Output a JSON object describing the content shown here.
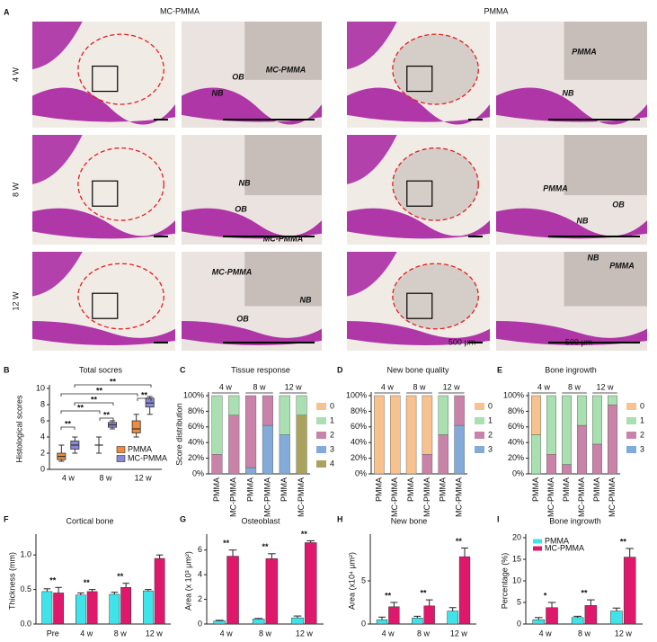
{
  "figure": {
    "panel_a": {
      "label": "A",
      "column_titles": [
        "MC-PMMA",
        "PMMA"
      ],
      "row_labels": [
        "4 W",
        "8 W",
        "12 W"
      ],
      "image_labels": [
        "OB",
        "MC-PMMA",
        "NB",
        "PMMA",
        "NB",
        "NB",
        "OB",
        "MC-PMMA",
        "PMMA",
        "OB",
        "NB",
        "MC-PMMA",
        "OB",
        "NB",
        "NB",
        "PMMA"
      ],
      "scale_bars": [
        "500 μm",
        "500 μm"
      ]
    }
  },
  "chart_data": [
    {
      "label": "B",
      "type": "box",
      "title": "Total socres",
      "y_label": "Histological scores",
      "categories": [
        "4 w",
        "8 w",
        "12 w"
      ],
      "ylim": [
        0,
        10
      ],
      "yticks": [
        0,
        2,
        4,
        6,
        8,
        10
      ],
      "legend": "lower right",
      "series": [
        {
          "name": "PMMA",
          "color": "#f08a3c",
          "min": [
            1,
            2,
            4
          ],
          "q1": [
            1.2,
            3,
            4.5
          ],
          "median": [
            1.6,
            3,
            5
          ],
          "q3": [
            2,
            3,
            6
          ],
          "max": [
            3,
            4,
            6.8
          ]
        },
        {
          "name": "MC-PMMA",
          "color": "#8a86d8",
          "min": [
            2,
            5,
            6.8
          ],
          "q1": [
            2.5,
            5.2,
            7.7
          ],
          "median": [
            3,
            5.5,
            8.2
          ],
          "q3": [
            3.5,
            5.8,
            8.8
          ],
          "max": [
            4,
            6,
            9
          ]
        }
      ],
      "annotations": [
        "**",
        "**",
        "**",
        "**",
        "**",
        "**",
        "**"
      ]
    },
    {
      "label": "C",
      "type": "stacked_bar",
      "title": "Tissue response",
      "y_label": "Score distribution",
      "categories": [
        "PMMA",
        "MC-PMMA",
        "PMMA",
        "MC-PMMA",
        "PMMA",
        "MC-PMMA"
      ],
      "groups": [
        "4 w",
        "8 w",
        "12 w"
      ],
      "ylim": [
        0,
        100
      ],
      "yticks": [
        {
          "value": 0,
          "label": "0%"
        },
        {
          "value": 20,
          "label": "20%"
        },
        {
          "value": 40,
          "label": "40%"
        },
        {
          "value": 60,
          "label": "60%"
        },
        {
          "value": 80,
          "label": "80%"
        },
        {
          "value": 100,
          "label": "100%"
        }
      ],
      "legend": "right",
      "series": [
        {
          "name": "0",
          "color": "#f7c28e",
          "values": [
            0,
            0,
            0,
            0,
            0,
            0
          ]
        },
        {
          "name": "1",
          "color": "#a9dfb1",
          "values": [
            75,
            25,
            0,
            0,
            50,
            25
          ]
        },
        {
          "name": "2",
          "color": "#c983a8",
          "values": [
            25,
            75,
            92,
            38,
            0,
            0
          ]
        },
        {
          "name": "3",
          "color": "#83abd9",
          "values": [
            0,
            0,
            8,
            62,
            50,
            0
          ]
        },
        {
          "name": "4",
          "color": "#aaa35e",
          "values": [
            0,
            0,
            0,
            0,
            0,
            75
          ]
        }
      ]
    },
    {
      "label": "D",
      "type": "stacked_bar",
      "title": "New bone quality",
      "categories": [
        "PMMA",
        "MC-PMMA",
        "PMMA",
        "MC-PMMA",
        "PMMA",
        "MC-PMMA"
      ],
      "groups": [
        "4 w",
        "8 w",
        "12 w"
      ],
      "ylim": [
        0,
        100
      ],
      "yticks": [
        {
          "value": 0,
          "label": "0%"
        },
        {
          "value": 20,
          "label": "20%"
        },
        {
          "value": 40,
          "label": "40%"
        },
        {
          "value": 60,
          "label": "60%"
        },
        {
          "value": 80,
          "label": "80%"
        },
        {
          "value": 100,
          "label": "100%"
        }
      ],
      "legend": "right",
      "series": [
        {
          "name": "0",
          "color": "#f7c28e",
          "values": [
            100,
            100,
            100,
            75,
            0,
            0
          ]
        },
        {
          "name": "1",
          "color": "#a9dfb1",
          "values": [
            0,
            0,
            0,
            0,
            50,
            0
          ]
        },
        {
          "name": "2",
          "color": "#c983a8",
          "values": [
            0,
            0,
            0,
            25,
            50,
            38
          ]
        },
        {
          "name": "3",
          "color": "#83abd9",
          "values": [
            0,
            0,
            0,
            0,
            0,
            62
          ]
        }
      ]
    },
    {
      "label": "E",
      "type": "stacked_bar",
      "title": "Bone ingrowth",
      "categories": [
        "PMMA",
        "MC-PMMA",
        "PMMA",
        "MC-PMMA",
        "PMMA",
        "MC-PMMA"
      ],
      "groups": [
        "4 w",
        "8 w",
        "12 w"
      ],
      "ylim": [
        0,
        100
      ],
      "yticks": [
        {
          "value": 0,
          "label": "0%"
        },
        {
          "value": 20,
          "label": "20%"
        },
        {
          "value": 40,
          "label": "40%"
        },
        {
          "value": 60,
          "label": "60%"
        },
        {
          "value": 80,
          "label": "80%"
        },
        {
          "value": 100,
          "label": "100%"
        }
      ],
      "legend": "right",
      "series": [
        {
          "name": "0",
          "color": "#f7c28e",
          "values": [
            50,
            0,
            0,
            0,
            0,
            0
          ]
        },
        {
          "name": "1",
          "color": "#a9dfb1",
          "values": [
            50,
            75,
            88,
            38,
            62,
            12
          ]
        },
        {
          "name": "2",
          "color": "#c983a8",
          "values": [
            0,
            25,
            12,
            62,
            38,
            88
          ]
        },
        {
          "name": "3",
          "color": "#83abd9",
          "values": [
            0,
            0,
            0,
            0,
            0,
            0
          ]
        }
      ]
    },
    {
      "label": "F",
      "type": "bar",
      "title": "Cortical bone",
      "y_label": "Thickness (mm)",
      "categories": [
        "Pre",
        "4 w",
        "8 w",
        "12 w"
      ],
      "ylim": [
        0,
        1.25
      ],
      "yticks": [
        {
          "value": 0,
          "label": "0.0"
        },
        0.5,
        {
          "value": 1,
          "label": "1.0"
        }
      ],
      "series": [
        {
          "color": "#3fe3ea",
          "values": [
            0.47,
            0.42,
            0.43,
            0.48
          ],
          "errors": [
            0.04,
            0.03,
            0.03,
            0.02
          ]
        },
        {
          "color": "#e0186c",
          "values": [
            0.45,
            0.47,
            0.53,
            0.95
          ],
          "errors": [
            0.08,
            0.03,
            0.06,
            0.05
          ]
        }
      ],
      "annotations": [
        "**",
        "**",
        "**"
      ]
    },
    {
      "label": "G",
      "type": "bar",
      "title": "Osteoblast",
      "y_label": "Area (x 10³ μm²)",
      "categories": [
        "4 w",
        "8 w",
        "12 w"
      ],
      "ylim": [
        0,
        7
      ],
      "yticks": [
        0,
        2,
        4,
        6
      ],
      "series": [
        {
          "color": "#3fe3ea",
          "values": [
            0.25,
            0.4,
            0.5
          ],
          "errors": [
            0.05,
            0.05,
            0.15
          ]
        },
        {
          "color": "#e0186c",
          "values": [
            5.5,
            5.3,
            6.6
          ],
          "errors": [
            0.5,
            0.4,
            0.15
          ]
        }
      ],
      "annotations": [
        "**",
        "**",
        "**"
      ]
    },
    {
      "label": "H",
      "type": "bar",
      "title": "New bone",
      "y_label": "Area (x10⁴ μm²)",
      "categories": [
        "4 w",
        "8 w",
        "12 w"
      ],
      "ylim": [
        0,
        10
      ],
      "yticks": [
        0,
        5
      ],
      "series": [
        {
          "color": "#3fe3ea",
          "values": [
            0.5,
            0.7,
            1.5
          ],
          "errors": [
            0.3,
            0.2,
            0.4
          ]
        },
        {
          "color": "#e0186c",
          "values": [
            2,
            2.1,
            7.8
          ],
          "errors": [
            0.5,
            0.7,
            1
          ]
        }
      ],
      "annotations": [
        "**",
        "**",
        "**"
      ]
    },
    {
      "label": "I",
      "type": "bar",
      "title": "Bone ingrowth",
      "y_label": "Percentage (%)",
      "categories": [
        "4 w",
        "8 w",
        "12 w"
      ],
      "ylim": [
        0,
        20
      ],
      "yticks": [
        0,
        5,
        10,
        15,
        20
      ],
      "legend": "upper left",
      "series": [
        {
          "name": "PMMA",
          "color": "#3fe3ea",
          "values": [
            1,
            1.5,
            3
          ],
          "errors": [
            0.5,
            0.3,
            0.7
          ]
        },
        {
          "name": "MC-PMMA",
          "color": "#e0186c",
          "values": [
            3.8,
            4.3,
            15.5
          ],
          "errors": [
            1.2,
            1.3,
            2
          ]
        }
      ],
      "annotations": [
        "*",
        "**",
        "**"
      ]
    }
  ]
}
